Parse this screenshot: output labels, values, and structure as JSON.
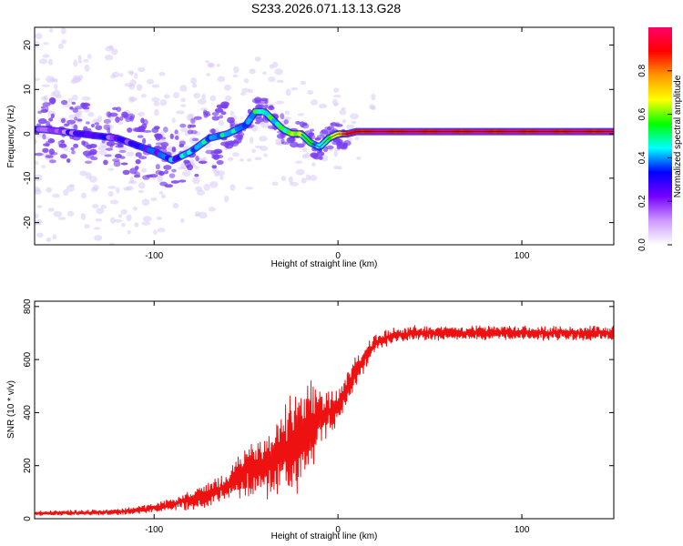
{
  "title": "S233.2026.071.13.13.G28",
  "colors": {
    "snr_line": "#ee1111",
    "axis": "#000000",
    "faint": "#d9c8f7",
    "ridge": "#7a3ff0"
  },
  "chart_data": [
    {
      "type": "heatmap",
      "name": "spectrogram",
      "xlabel": "Height of straight line (km)",
      "ylabel": "Frequency (Hz)",
      "xlim": [
        -165,
        150
      ],
      "ylim": [
        -25,
        24
      ],
      "xticks": [
        -100,
        0,
        100
      ],
      "yticks": [
        -20,
        -10,
        0,
        10,
        20
      ],
      "colorbar": {
        "label": "Normalized spectral amplitude",
        "range": [
          0,
          1
        ],
        "ticks": [
          0.0,
          0.2,
          0.4,
          0.6,
          0.8
        ],
        "colormap": [
          "#ffffff",
          "#cc99ff",
          "#7700ff",
          "#0000ff",
          "#00ffff",
          "#00ff00",
          "#ffff00",
          "#ff9900",
          "#ff0000",
          "#ff0066"
        ]
      },
      "ridge": {
        "x": [
          -160,
          -140,
          -120,
          -100,
          -90,
          -80,
          -70,
          -60,
          -50,
          -45,
          -40,
          -35,
          -30,
          -25,
          -20,
          -15,
          -10,
          -5,
          0,
          5,
          10,
          150
        ],
        "frequency": [
          1,
          0,
          -1,
          -4,
          -6,
          -4,
          -1,
          0,
          2,
          5,
          5,
          3,
          1,
          0,
          0,
          -2,
          -3,
          -1,
          0,
          0,
          0.5,
          0.5
        ],
        "amplitude": [
          0.2,
          0.2,
          0.25,
          0.3,
          0.35,
          0.4,
          0.45,
          0.4,
          0.45,
          0.5,
          0.5,
          0.5,
          0.55,
          0.6,
          0.55,
          0.45,
          0.5,
          0.6,
          0.7,
          0.8,
          0.95,
          0.95
        ]
      }
    },
    {
      "type": "line",
      "name": "snr",
      "xlabel": "Height of straight line (km)",
      "ylabel": "SNR (10 * v/v)",
      "xlim": [
        -165,
        150
      ],
      "ylim": [
        0,
        820
      ],
      "xticks": [
        -100,
        0,
        100
      ],
      "yticks": [
        0,
        200,
        400,
        600,
        800
      ],
      "envelope": {
        "x": [
          -165,
          -120,
          -100,
          -80,
          -60,
          -50,
          -40,
          -30,
          -20,
          -15,
          -10,
          0,
          10,
          20,
          30,
          40,
          150
        ],
        "mean": [
          20,
          25,
          40,
          70,
          120,
          180,
          200,
          250,
          320,
          350,
          380,
          420,
          560,
          660,
          690,
          700,
          700
        ],
        "amplitude": [
          15,
          20,
          30,
          60,
          90,
          150,
          200,
          250,
          350,
          300,
          160,
          120,
          90,
          60,
          50,
          45,
          45
        ]
      }
    }
  ]
}
